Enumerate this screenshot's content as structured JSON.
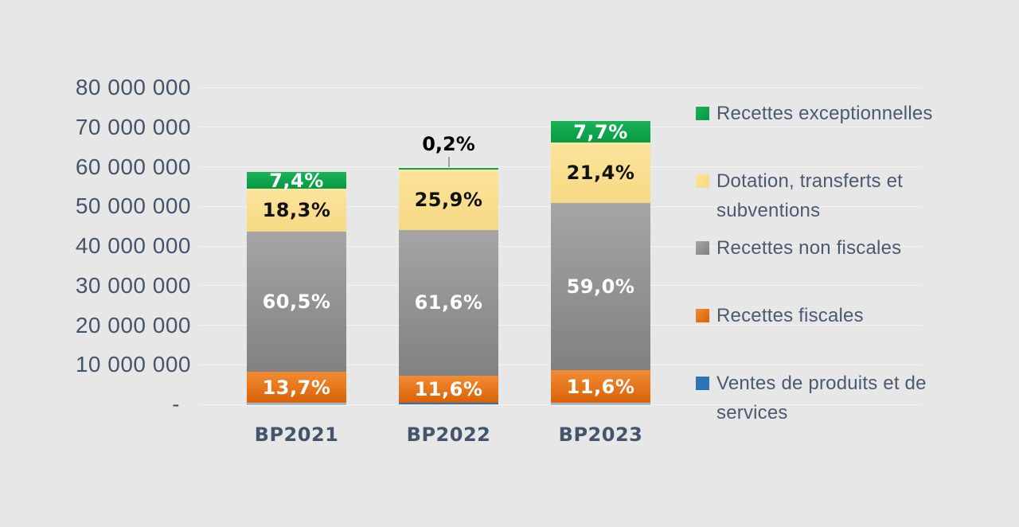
{
  "background_color": "#E7E7E7",
  "colors": {
    "axis_text": "#44546A",
    "category_text": "#44546A",
    "legend_text": "#4A5A70",
    "callout_text": "#000000",
    "callout_line": "#A0A0A0",
    "gridline": "rgba(255,255,255,0.55)"
  },
  "chart_data": {
    "type": "bar",
    "stacked": true,
    "title": "",
    "xlabel": "",
    "ylabel": "",
    "ylim": [
      0,
      80000000
    ],
    "grid": "faint horizontal gridlines every 10 000 000",
    "legend_position": "right",
    "categories": [
      "BP2021",
      "BP2022",
      "BP2023"
    ],
    "category_totals_estimated": [
      58500000,
      59500000,
      71500000
    ],
    "y_ticks": [
      {
        "value": 80000000,
        "label": "80 000 000"
      },
      {
        "value": 70000000,
        "label": "70 000 000"
      },
      {
        "value": 60000000,
        "label": "60 000 000"
      },
      {
        "value": 50000000,
        "label": "50 000 000"
      },
      {
        "value": 40000000,
        "label": "40 000 000"
      },
      {
        "value": 30000000,
        "label": "30 000 000"
      },
      {
        "value": 20000000,
        "label": "20 000 000"
      },
      {
        "value": 10000000,
        "label": "10 000 000"
      },
      {
        "value": 0,
        "label": "-"
      }
    ],
    "series_bottom_to_top": [
      {
        "name": "Ventes de produits et de services",
        "color": "#2E74B5",
        "color2": "#2E74B5",
        "label_color": "#FFFFFF",
        "values_pct": [
          0.1,
          0.7,
          0.3
        ],
        "labels": [
          "",
          "",
          ""
        ]
      },
      {
        "name": "Recettes fiscales",
        "color": "#F28C33",
        "color2": "#D96208",
        "label_color": "#FFFFFF",
        "values_pct": [
          13.7,
          11.6,
          11.6
        ],
        "labels": [
          "13,7%",
          "11,6%",
          "11,6%"
        ]
      },
      {
        "name": "Recettes non fiscales",
        "color": "#A5A5A5",
        "color2": "#818181",
        "label_color": "#FFFFFF",
        "values_pct": [
          60.5,
          61.6,
          59.0
        ],
        "labels": [
          "60,5%",
          "61,6%",
          "59,0%"
        ]
      },
      {
        "name": "Dotation, transferts et subventions",
        "color": "#FCE49C",
        "color2": "#F6D984",
        "label_color": "#111111",
        "values_pct": [
          18.3,
          25.9,
          21.4
        ],
        "labels": [
          "18,3%",
          "25,9%",
          "21,4%"
        ]
      },
      {
        "name": "Recettes exceptionnelles",
        "color": "#1BB258",
        "color2": "#059A43",
        "label_color": "#FFFFFF",
        "values_pct": [
          7.4,
          0.2,
          7.7
        ],
        "labels": [
          "7,4%",
          "0,2%",
          "7,7%"
        ],
        "callout": {
          "category_index": 1
        }
      }
    ],
    "legend_items": [
      "Recettes exceptionnelles",
      "Dotation, transferts et subventions",
      "Recettes non fiscales",
      "Recettes fiscales",
      "Ventes de produits et de services"
    ]
  }
}
